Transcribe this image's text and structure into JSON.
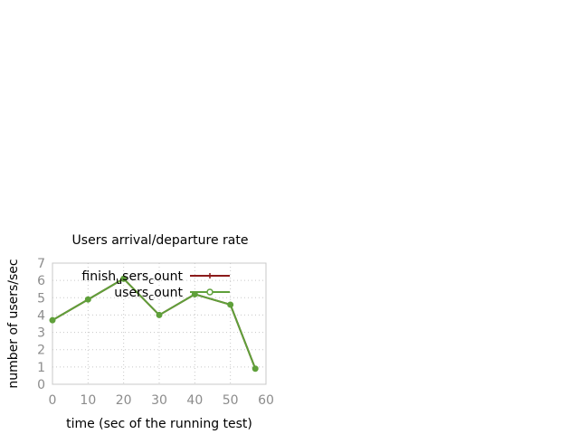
{
  "chart_data": {
    "type": "line",
    "title": "Users arrival/departure rate",
    "xlabel": "time (sec of the running test)",
    "ylabel": "number of users/sec",
    "xlim": [
      0,
      60
    ],
    "ylim": [
      0,
      7
    ],
    "xticks": [
      "0",
      "10",
      "20",
      "30",
      "40",
      "50",
      "60"
    ],
    "yticks": [
      "0",
      "1",
      "2",
      "3",
      "4",
      "5",
      "6",
      "7"
    ],
    "grid": true,
    "legend_position": "top-right",
    "series": [
      {
        "name": "finish_users_count",
        "legend_main": "finish",
        "legend_sub": "u",
        "legend_rest": "sers",
        "legend_sub2": "c",
        "legend_end": "ount",
        "color": "#8b1a1a",
        "marker": "plus",
        "x": [
          0,
          10,
          20,
          30,
          40,
          50,
          57
        ],
        "y": [
          3.7,
          4.9,
          6.1,
          4.0,
          5.2,
          4.6,
          0.9
        ]
      },
      {
        "name": "users_count",
        "legend_main": "users",
        "legend_sub": "c",
        "legend_rest": "ount",
        "color": "#5fa03a",
        "marker": "circle",
        "x": [
          0,
          10,
          20,
          30,
          40,
          50,
          57
        ],
        "y": [
          3.7,
          4.9,
          6.1,
          4.0,
          5.2,
          4.6,
          0.9
        ]
      }
    ]
  }
}
